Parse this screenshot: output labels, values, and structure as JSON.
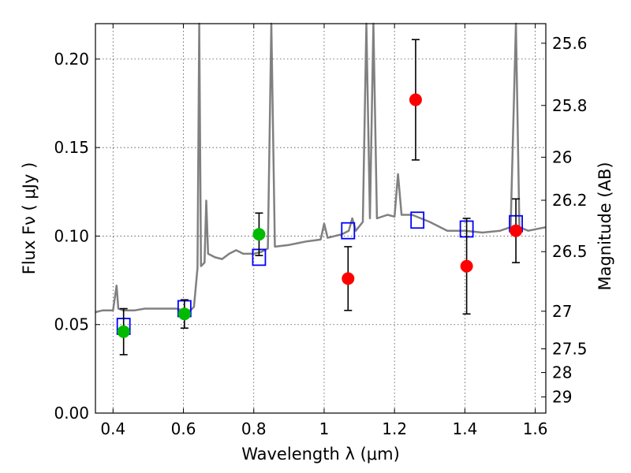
{
  "chart_data": {
    "type": "scatter",
    "xlabel": "Wavelength  λ (μm)",
    "ylabel": "Flux  Fν ( μJy )",
    "right_ylabel": "Magnitude (AB)",
    "xlim": [
      0.35,
      1.63
    ],
    "ylim": [
      0.0,
      0.22
    ],
    "x_ticks": [
      0.4,
      0.6,
      0.8,
      1.0,
      1.2,
      1.4,
      1.6
    ],
    "x_tick_labels": [
      "0.4",
      "0.6",
      "0.8",
      "1",
      "1.2",
      "1.4",
      "1.6"
    ],
    "y_ticks": [
      0.0,
      0.05,
      0.1,
      0.15,
      0.2
    ],
    "y_tick_labels": [
      "0.00",
      "0.05",
      "0.10",
      "0.15",
      "0.20"
    ],
    "right_ticks": [
      {
        "mag": 25.6,
        "label": "25.6"
      },
      {
        "mag": 25.8,
        "label": "25.8"
      },
      {
        "mag": 26.0,
        "label": "26"
      },
      {
        "mag": 26.2,
        "label": "26.2"
      },
      {
        "mag": 26.5,
        "label": "26.5"
      },
      {
        "mag": 27.0,
        "label": "27"
      },
      {
        "mag": 27.5,
        "label": "27.5"
      },
      {
        "mag": 28.0,
        "label": "28"
      },
      {
        "mag": 29.0,
        "label": "29"
      }
    ],
    "grid": true,
    "colors": {
      "spectrum": "#808080",
      "model": "#0000ff",
      "detection": "#00bb00",
      "measurement": "#ff0000",
      "errorbar": "#000000"
    },
    "series": [
      {
        "type": "line",
        "points": [
          [
            0.35,
            0.057
          ],
          [
            0.37,
            0.058
          ],
          [
            0.39,
            0.058
          ],
          [
            0.4,
            0.058
          ],
          [
            0.41,
            0.072
          ],
          [
            0.415,
            0.059
          ],
          [
            0.43,
            0.058
          ],
          [
            0.46,
            0.058
          ],
          [
            0.49,
            0.059
          ],
          [
            0.52,
            0.059
          ],
          [
            0.55,
            0.059
          ],
          [
            0.58,
            0.059
          ],
          [
            0.6,
            0.058
          ],
          [
            0.62,
            0.058
          ],
          [
            0.63,
            0.06
          ],
          [
            0.64,
            0.082
          ],
          [
            0.645,
            0.22
          ],
          [
            0.65,
            0.083
          ],
          [
            0.66,
            0.085
          ],
          [
            0.665,
            0.12
          ],
          [
            0.67,
            0.09
          ],
          [
            0.69,
            0.088
          ],
          [
            0.71,
            0.087
          ],
          [
            0.73,
            0.09
          ],
          [
            0.75,
            0.092
          ],
          [
            0.77,
            0.09
          ],
          [
            0.8,
            0.09
          ],
          [
            0.82,
            0.091
          ],
          [
            0.84,
            0.093
          ],
          [
            0.85,
            0.22
          ],
          [
            0.86,
            0.094
          ],
          [
            0.9,
            0.095
          ],
          [
            0.95,
            0.097
          ],
          [
            0.99,
            0.098
          ],
          [
            1.0,
            0.107
          ],
          [
            1.01,
            0.099
          ],
          [
            1.05,
            0.101
          ],
          [
            1.07,
            0.103
          ],
          [
            1.08,
            0.11
          ],
          [
            1.09,
            0.103
          ],
          [
            1.11,
            0.108
          ],
          [
            1.12,
            0.22
          ],
          [
            1.13,
            0.11
          ],
          [
            1.14,
            0.22
          ],
          [
            1.15,
            0.11
          ],
          [
            1.18,
            0.112
          ],
          [
            1.2,
            0.111
          ],
          [
            1.21,
            0.135
          ],
          [
            1.22,
            0.112
          ],
          [
            1.25,
            0.112
          ],
          [
            1.3,
            0.108
          ],
          [
            1.35,
            0.103
          ],
          [
            1.4,
            0.103
          ],
          [
            1.45,
            0.102
          ],
          [
            1.5,
            0.103
          ],
          [
            1.53,
            0.105
          ],
          [
            1.545,
            0.22
          ],
          [
            1.555,
            0.105
          ],
          [
            1.58,
            0.103
          ],
          [
            1.63,
            0.105
          ]
        ]
      },
      {
        "type": "model",
        "points": [
          [
            0.43,
            0.049
          ],
          [
            0.603,
            0.059
          ],
          [
            0.815,
            0.088
          ],
          [
            1.068,
            0.103
          ],
          [
            1.265,
            0.109
          ],
          [
            1.405,
            0.104
          ],
          [
            1.545,
            0.107
          ]
        ]
      },
      {
        "type": "detection",
        "points": [
          [
            0.43,
            0.046,
            0.013
          ],
          [
            0.603,
            0.056,
            0.008
          ],
          [
            0.815,
            0.101,
            0.012
          ]
        ]
      },
      {
        "type": "measurement",
        "points": [
          [
            1.068,
            0.076,
            0.018
          ],
          [
            1.26,
            0.177,
            0.034
          ],
          [
            1.405,
            0.083,
            0.027
          ],
          [
            1.545,
            0.103,
            0.018
          ]
        ]
      }
    ]
  }
}
